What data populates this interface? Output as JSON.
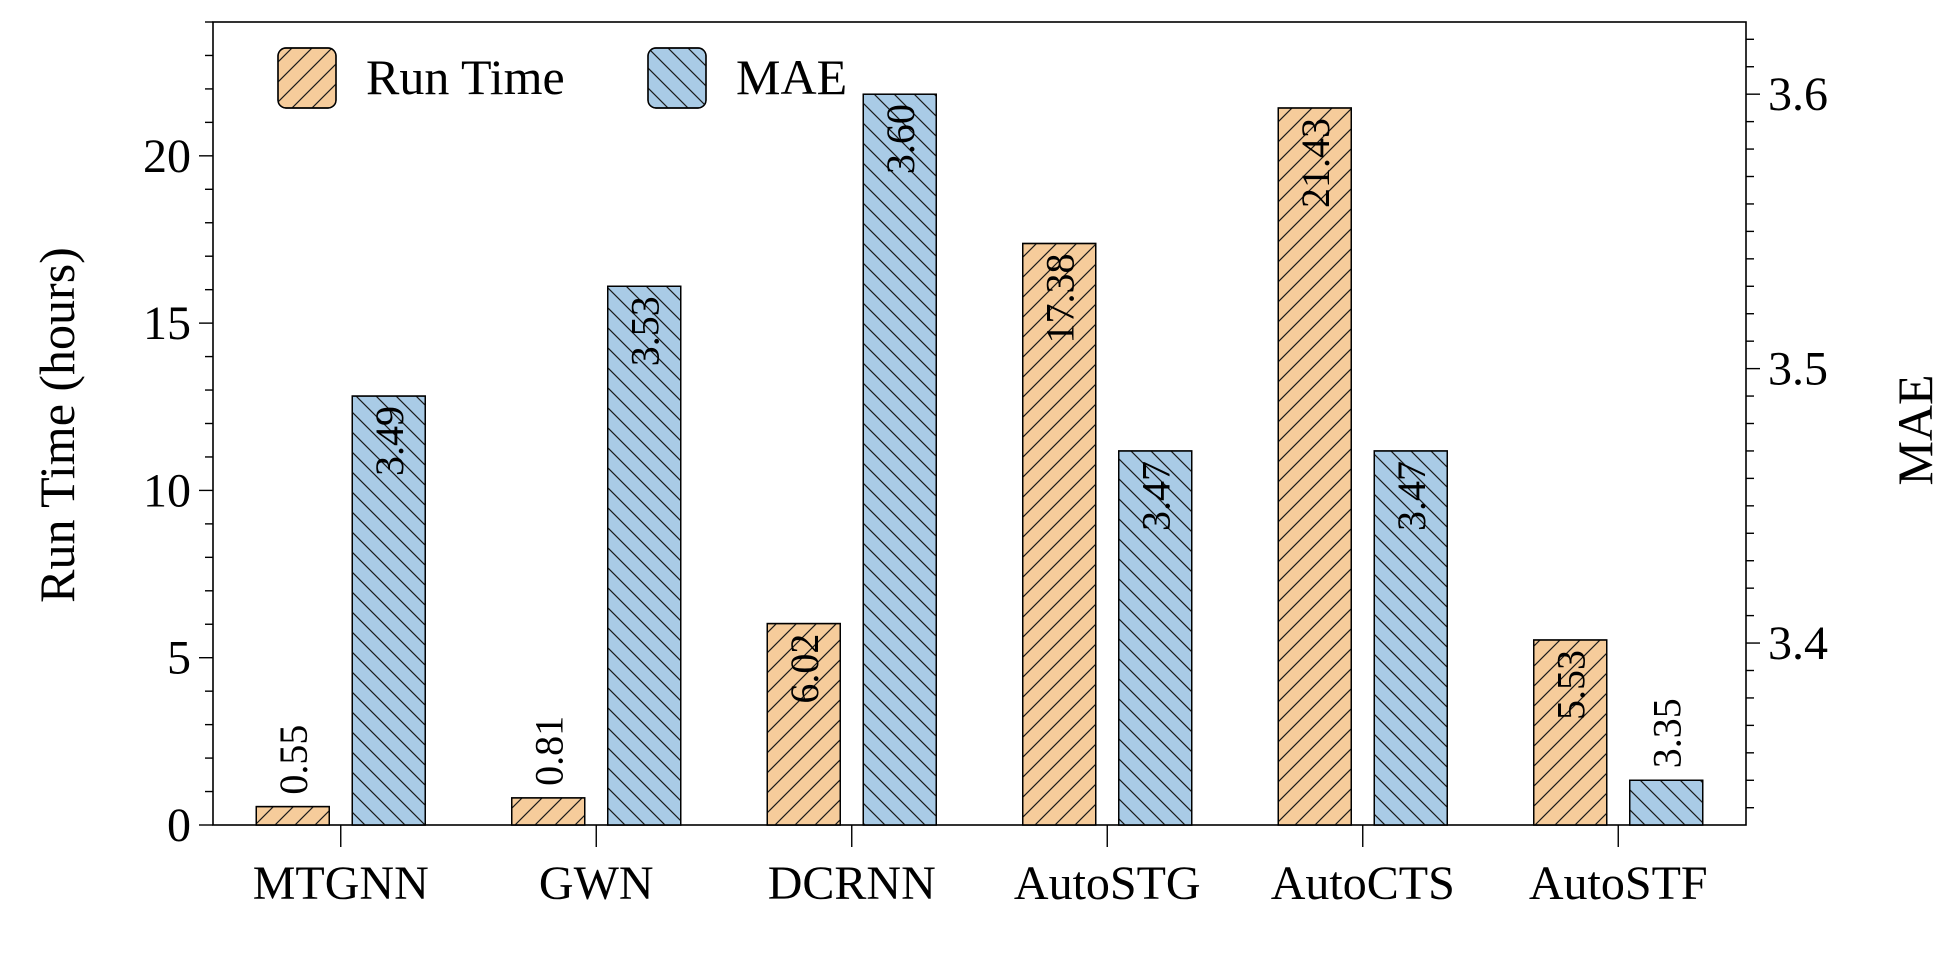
{
  "chart_data": {
    "type": "bar",
    "categories": [
      "MTGNN",
      "GWN",
      "DCRNN",
      "AutoSTG",
      "AutoCTS",
      "AutoSTF"
    ],
    "series": [
      {
        "name": "Run Time",
        "axis": "left",
        "values": [
          0.55,
          0.81,
          6.02,
          17.38,
          21.43,
          5.53
        ],
        "labels": [
          "0.55",
          "0.81",
          "6.02",
          "17.38",
          "21.43",
          "5.53"
        ],
        "color": "#f6cc9b",
        "hatch": "forward-diagonal"
      },
      {
        "name": "MAE",
        "axis": "right",
        "values": [
          3.49,
          3.53,
          3.6,
          3.47,
          3.47,
          3.35
        ],
        "labels": [
          "3.49",
          "3.53",
          "3.60",
          "3.47",
          "3.47",
          "3.35"
        ],
        "color": "#a9cbe6",
        "hatch": "back-diagonal"
      }
    ],
    "ylabel": "Run Time (hours)",
    "y2label": "MAE",
    "ylim": [
      0,
      24
    ],
    "y2lim": [
      3.3337,
      3.6263
    ],
    "yticks": [
      0,
      5,
      10,
      15,
      20
    ],
    "yticks_labels": [
      "0",
      "5",
      "10",
      "15",
      "20"
    ],
    "y2ticks": [
      3.4,
      3.5,
      3.6
    ],
    "y2ticks_labels": [
      "3.4",
      "3.5",
      "3.6"
    ],
    "legend": "top-left",
    "grid": false
  }
}
